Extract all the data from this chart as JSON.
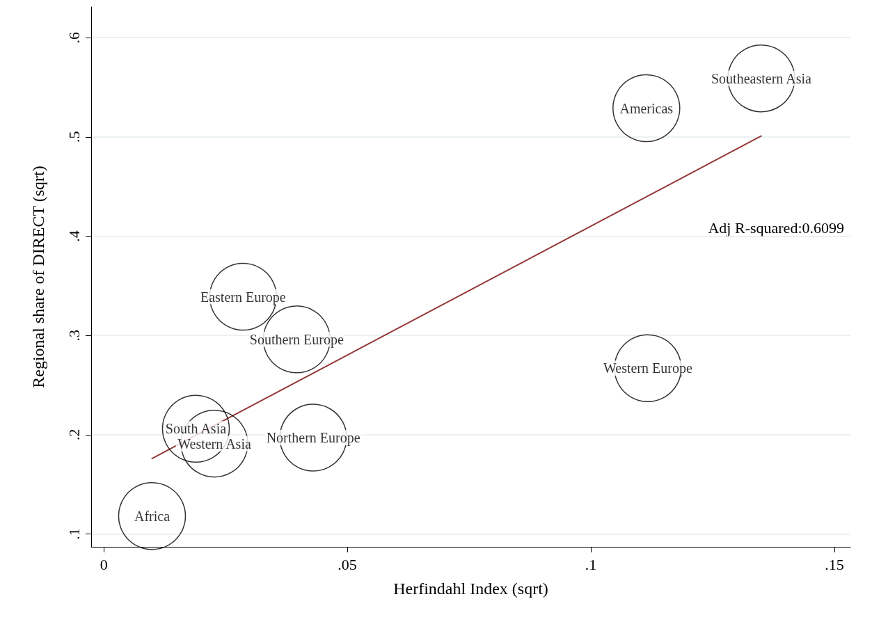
{
  "chart_data": {
    "type": "scatter",
    "xlabel": "Herfindahl Index (sqrt)",
    "ylabel": "Regional share of DIRECT (sqrt)",
    "xlim": [
      -0.0026,
      0.1533
    ],
    "ylim": [
      0.087,
      0.631
    ],
    "xticks": [
      0,
      {
        "value": 0.05,
        "label": ".05"
      },
      {
        "value": 0.1,
        "label": ".1"
      },
      {
        "value": 0.15,
        "label": ".15"
      }
    ],
    "yticks": [
      {
        "value": 0.1,
        "label": ".1"
      },
      {
        "value": 0.2,
        "label": ".2"
      },
      {
        "value": 0.3,
        "label": ".3"
      },
      {
        "value": 0.4,
        "label": ".4"
      },
      {
        "value": 0.5,
        "label": ".5"
      },
      {
        "value": 0.6,
        "label": ".6"
      }
    ],
    "grid": "y",
    "marker": "circle",
    "annotations": [
      "Adj R-squared:0.6099"
    ],
    "series": [
      {
        "name": "Southeastern Asia",
        "color": "#000000",
        "x": [
          0.135
        ],
        "values": [
          0.559
        ]
      },
      {
        "name": "Americas",
        "color": "#000000",
        "x": [
          0.1114
        ],
        "values": [
          0.529
        ]
      },
      {
        "name": "Western Europe",
        "color": "#000000",
        "x": [
          0.1117
        ],
        "values": [
          0.267
        ]
      },
      {
        "name": "Eastern Europe",
        "color": "#000000",
        "x": [
          0.0286
        ],
        "values": [
          0.339
        ]
      },
      {
        "name": "Southern Europe",
        "color": "#000000",
        "x": [
          0.0396
        ],
        "values": [
          0.296
        ]
      },
      {
        "name": "South Asia",
        "color": "#000000",
        "x": [
          0.0189
        ],
        "values": [
          0.206
        ]
      },
      {
        "name": "Western Asia",
        "color": "#000000",
        "x": [
          0.0227
        ],
        "values": [
          0.191
        ]
      },
      {
        "name": "Northern Europe",
        "color": "#000000",
        "x": [
          0.043
        ],
        "values": [
          0.197
        ]
      },
      {
        "name": "Africa",
        "color": "#000000",
        "x": [
          0.0099
        ],
        "values": [
          0.118
        ]
      },
      {
        "type": "line",
        "color": "#943838",
        "marker": "none",
        "x": [
          0.0099,
          0.135
        ],
        "values": [
          0.176,
          0.501
        ]
      }
    ]
  }
}
